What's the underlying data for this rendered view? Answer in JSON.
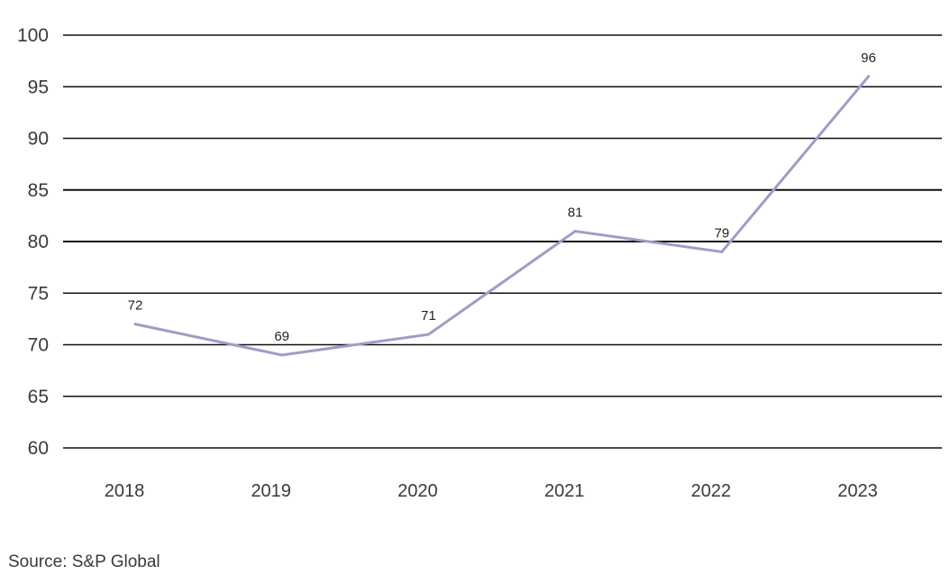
{
  "source": "Source: S&P Global",
  "chart_data": {
    "type": "line",
    "title": "",
    "xlabel": "",
    "ylabel": "",
    "categories": [
      "2018",
      "2019",
      "2020",
      "2021",
      "2022",
      "2023"
    ],
    "series": [
      {
        "values": [
          72,
          69,
          71,
          81,
          79,
          96
        ],
        "color": "#a09cc6"
      }
    ],
    "data_labels": [
      "72",
      "69",
      "71",
      "81",
      "79",
      "96"
    ],
    "ylim": [
      60,
      100
    ],
    "yticks": [
      100,
      95,
      90,
      85,
      80,
      75,
      70,
      65,
      60
    ],
    "ytick_labels": [
      "100",
      "95",
      "90",
      "85",
      "80",
      "75",
      "70",
      "65",
      "60"
    ],
    "grid": true,
    "legend": "none",
    "gridline_color": "#111111"
  }
}
